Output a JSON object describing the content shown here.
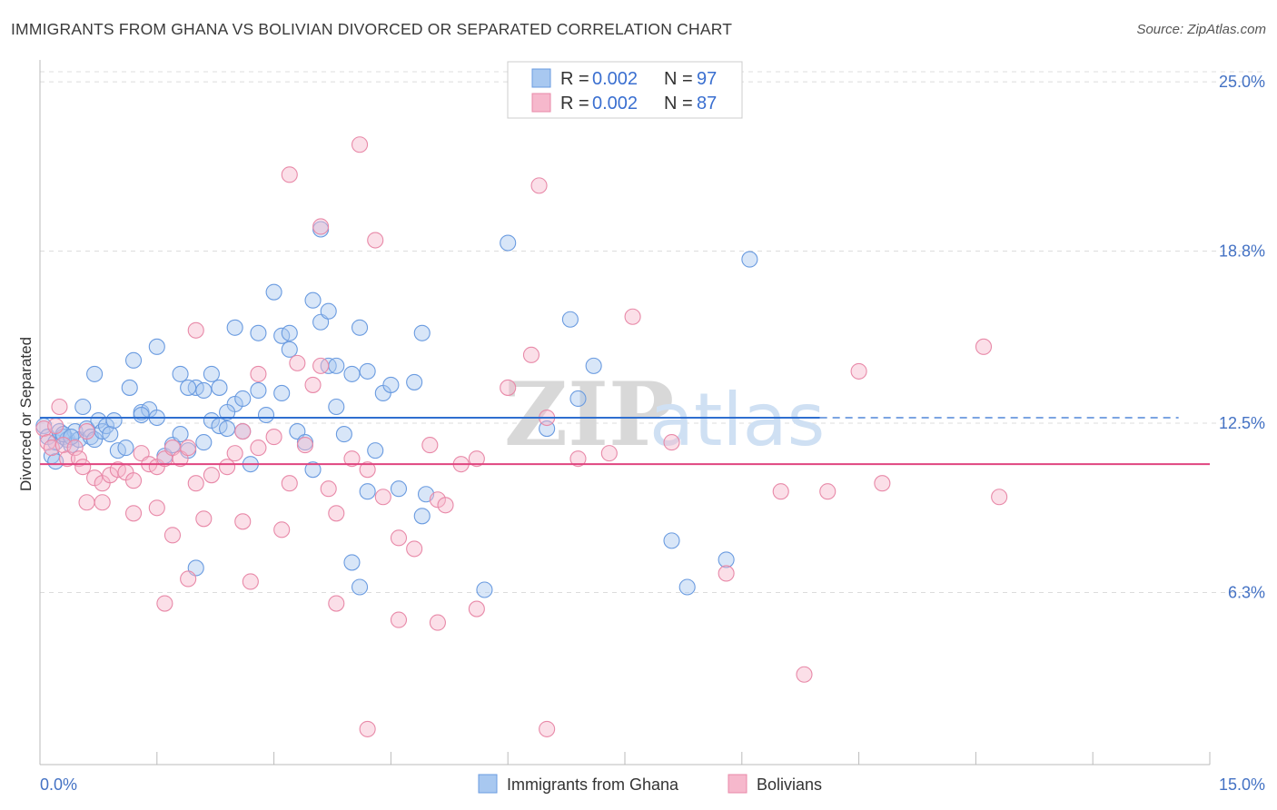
{
  "header": {
    "title": "IMMIGRANTS FROM GHANA VS BOLIVIAN DIVORCED OR SEPARATED CORRELATION CHART",
    "source": "Source: ZipAtlas.com"
  },
  "watermark": {
    "part1": "ZIP",
    "part2": "atlas"
  },
  "legend": {
    "rows": [
      {
        "r_label": "R = ",
        "r_value": "0.002",
        "n_label": "N = ",
        "n_value": "97",
        "color": "#a8c8f0"
      },
      {
        "r_label": "R = ",
        "r_value": "0.002",
        "n_label": "N = ",
        "n_value": "87",
        "color": "#f6b8cc"
      }
    ]
  },
  "chart_data": {
    "type": "scatter",
    "title": "IMMIGRANTS FROM GHANA VS BOLIVIAN DIVORCED OR SEPARATED CORRELATION CHART",
    "xlabel": "",
    "ylabel": "Divorced or Separated",
    "xlim": [
      0,
      15
    ],
    "ylim": [
      0,
      26
    ],
    "x_tick_labels": [
      "0.0%",
      "15.0%"
    ],
    "y_ticks": [
      6.3,
      12.5,
      18.8,
      25.0
    ],
    "y_tick_labels": [
      "6.3%",
      "12.5%",
      "18.8%",
      "25.0%"
    ],
    "grid": true,
    "series": [
      {
        "name": "Immigrants from Ghana",
        "color": "#6a9be0",
        "fill": "#a8c8f0",
        "trend": {
          "y": 12.7,
          "x_solid_end": 10.0,
          "x_dashed_end": 14.6,
          "color": "#2f6fd0"
        },
        "points": [
          [
            0.05,
            12.4
          ],
          [
            0.1,
            12.0
          ],
          [
            0.15,
            11.3
          ],
          [
            0.2,
            11.8
          ],
          [
            0.25,
            12.2
          ],
          [
            0.3,
            12.0
          ],
          [
            0.35,
            11.9
          ],
          [
            0.4,
            11.7
          ],
          [
            0.45,
            12.2
          ],
          [
            0.5,
            11.9
          ],
          [
            0.55,
            13.1
          ],
          [
            0.6,
            12.3
          ],
          [
            0.65,
            12.0
          ],
          [
            0.7,
            11.9
          ],
          [
            0.75,
            12.6
          ],
          [
            0.8,
            12.2
          ],
          [
            0.85,
            12.4
          ],
          [
            0.9,
            12.1
          ],
          [
            0.95,
            12.6
          ],
          [
            1.0,
            11.5
          ],
          [
            1.1,
            11.6
          ],
          [
            1.15,
            13.8
          ],
          [
            1.3,
            12.9
          ],
          [
            1.4,
            13.0
          ],
          [
            1.5,
            12.7
          ],
          [
            1.6,
            11.3
          ],
          [
            1.7,
            11.7
          ],
          [
            1.8,
            12.1
          ],
          [
            1.9,
            11.5
          ],
          [
            2.0,
            13.8
          ],
          [
            2.1,
            13.7
          ],
          [
            2.2,
            12.6
          ],
          [
            2.3,
            12.4
          ],
          [
            2.4,
            12.3
          ],
          [
            2.5,
            13.2
          ],
          [
            2.6,
            13.4
          ],
          [
            2.7,
            11.0
          ],
          [
            2.8,
            13.7
          ],
          [
            2.9,
            12.8
          ],
          [
            3.0,
            17.3
          ],
          [
            3.1,
            15.7
          ],
          [
            3.2,
            15.2
          ],
          [
            3.3,
            12.2
          ],
          [
            3.4,
            11.8
          ],
          [
            3.5,
            10.8
          ],
          [
            3.6,
            16.2
          ],
          [
            3.7,
            14.6
          ],
          [
            3.8,
            13.1
          ],
          [
            3.9,
            12.1
          ],
          [
            4.0,
            14.3
          ],
          [
            4.1,
            16.0
          ],
          [
            4.2,
            14.4
          ],
          [
            4.3,
            11.5
          ],
          [
            4.4,
            13.6
          ],
          [
            0.7,
            14.3
          ],
          [
            1.2,
            14.8
          ],
          [
            1.5,
            15.3
          ],
          [
            1.8,
            14.3
          ],
          [
            2.2,
            14.3
          ],
          [
            2.5,
            16.0
          ],
          [
            2.8,
            15.8
          ],
          [
            3.2,
            15.8
          ],
          [
            3.5,
            17.0
          ],
          [
            3.6,
            19.6
          ],
          [
            3.7,
            16.6
          ],
          [
            4.2,
            10.0
          ],
          [
            4.5,
            13.9
          ],
          [
            4.8,
            14.0
          ],
          [
            4.9,
            9.1
          ],
          [
            4.95,
            9.9
          ],
          [
            4.9,
            15.8
          ],
          [
            4.6,
            10.1
          ],
          [
            5.7,
            6.4
          ],
          [
            6.0,
            19.1
          ],
          [
            6.5,
            12.3
          ],
          [
            6.8,
            16.3
          ],
          [
            6.9,
            13.4
          ],
          [
            7.1,
            14.6
          ],
          [
            8.1,
            8.2
          ],
          [
            8.3,
            6.5
          ],
          [
            8.8,
            7.5
          ],
          [
            9.1,
            18.5
          ],
          [
            4.1,
            6.5
          ],
          [
            4.0,
            7.4
          ],
          [
            2.0,
            7.2
          ],
          [
            2.3,
            13.8
          ],
          [
            1.9,
            13.8
          ],
          [
            3.1,
            13.6
          ],
          [
            2.4,
            12.9
          ],
          [
            2.6,
            12.2
          ],
          [
            3.8,
            14.6
          ],
          [
            2.1,
            11.8
          ],
          [
            0.2,
            11.1
          ],
          [
            0.3,
            12.1
          ],
          [
            0.4,
            12.0
          ],
          [
            1.3,
            12.8
          ]
        ]
      },
      {
        "name": "Bolivians",
        "color": "#e889a8",
        "fill": "#f6b8cc",
        "trend": {
          "y": 11.0,
          "x_solid_end": 15.0,
          "x_dashed_end": 15.0,
          "color": "#e0457f"
        },
        "points": [
          [
            0.05,
            12.3
          ],
          [
            0.1,
            11.8
          ],
          [
            0.15,
            11.6
          ],
          [
            0.2,
            12.4
          ],
          [
            0.25,
            13.1
          ],
          [
            0.3,
            11.7
          ],
          [
            0.35,
            11.2
          ],
          [
            0.45,
            11.6
          ],
          [
            0.5,
            11.2
          ],
          [
            0.55,
            10.9
          ],
          [
            0.6,
            12.2
          ],
          [
            0.7,
            10.5
          ],
          [
            0.8,
            10.3
          ],
          [
            0.9,
            10.6
          ],
          [
            1.0,
            10.8
          ],
          [
            1.1,
            10.7
          ],
          [
            1.2,
            10.4
          ],
          [
            1.3,
            11.4
          ],
          [
            1.4,
            11.0
          ],
          [
            1.5,
            10.9
          ],
          [
            1.6,
            11.2
          ],
          [
            1.7,
            11.6
          ],
          [
            1.8,
            11.2
          ],
          [
            1.9,
            11.6
          ],
          [
            2.0,
            10.3
          ],
          [
            2.2,
            10.6
          ],
          [
            2.4,
            10.9
          ],
          [
            2.5,
            11.4
          ],
          [
            2.6,
            12.2
          ],
          [
            2.8,
            11.6
          ],
          [
            3.0,
            12.0
          ],
          [
            3.2,
            10.3
          ],
          [
            3.4,
            11.7
          ],
          [
            3.5,
            13.9
          ],
          [
            3.6,
            14.6
          ],
          [
            3.7,
            10.1
          ],
          [
            3.8,
            9.2
          ],
          [
            4.0,
            11.2
          ],
          [
            4.2,
            10.8
          ],
          [
            4.4,
            9.8
          ],
          [
            4.6,
            8.3
          ],
          [
            4.8,
            7.9
          ],
          [
            5.0,
            11.7
          ],
          [
            5.1,
            9.7
          ],
          [
            5.2,
            9.5
          ],
          [
            5.4,
            11.0
          ],
          [
            5.6,
            11.2
          ],
          [
            6.0,
            13.8
          ],
          [
            6.3,
            15.0
          ],
          [
            6.5,
            12.7
          ],
          [
            6.9,
            11.2
          ],
          [
            7.3,
            11.4
          ],
          [
            7.6,
            16.4
          ],
          [
            8.1,
            11.8
          ],
          [
            8.8,
            7.0
          ],
          [
            9.5,
            10.0
          ],
          [
            9.8,
            3.3
          ],
          [
            10.1,
            10.0
          ],
          [
            10.5,
            14.4
          ],
          [
            10.8,
            10.3
          ],
          [
            12.1,
            15.3
          ],
          [
            12.3,
            9.8
          ],
          [
            3.2,
            21.6
          ],
          [
            4.1,
            22.7
          ],
          [
            6.4,
            21.2
          ],
          [
            3.6,
            19.7
          ],
          [
            4.3,
            19.2
          ],
          [
            2.0,
            15.9
          ],
          [
            2.8,
            14.3
          ],
          [
            3.3,
            14.7
          ],
          [
            1.6,
            5.9
          ],
          [
            1.9,
            6.8
          ],
          [
            3.8,
            5.9
          ],
          [
            4.6,
            5.3
          ],
          [
            5.1,
            5.2
          ],
          [
            5.6,
            5.7
          ],
          [
            4.2,
            1.3
          ],
          [
            6.5,
            1.3
          ],
          [
            3.1,
            8.6
          ],
          [
            2.6,
            8.9
          ],
          [
            2.1,
            9.0
          ],
          [
            1.7,
            8.4
          ],
          [
            1.5,
            9.4
          ],
          [
            1.2,
            9.2
          ],
          [
            0.8,
            9.6
          ],
          [
            0.6,
            9.6
          ],
          [
            2.7,
            6.7
          ]
        ]
      }
    ]
  },
  "bottom_legend": {
    "items": [
      {
        "label": "Immigrants from Ghana",
        "color": "#a8c8f0"
      },
      {
        "label": "Bolivians",
        "color": "#f6b8cc"
      }
    ]
  }
}
